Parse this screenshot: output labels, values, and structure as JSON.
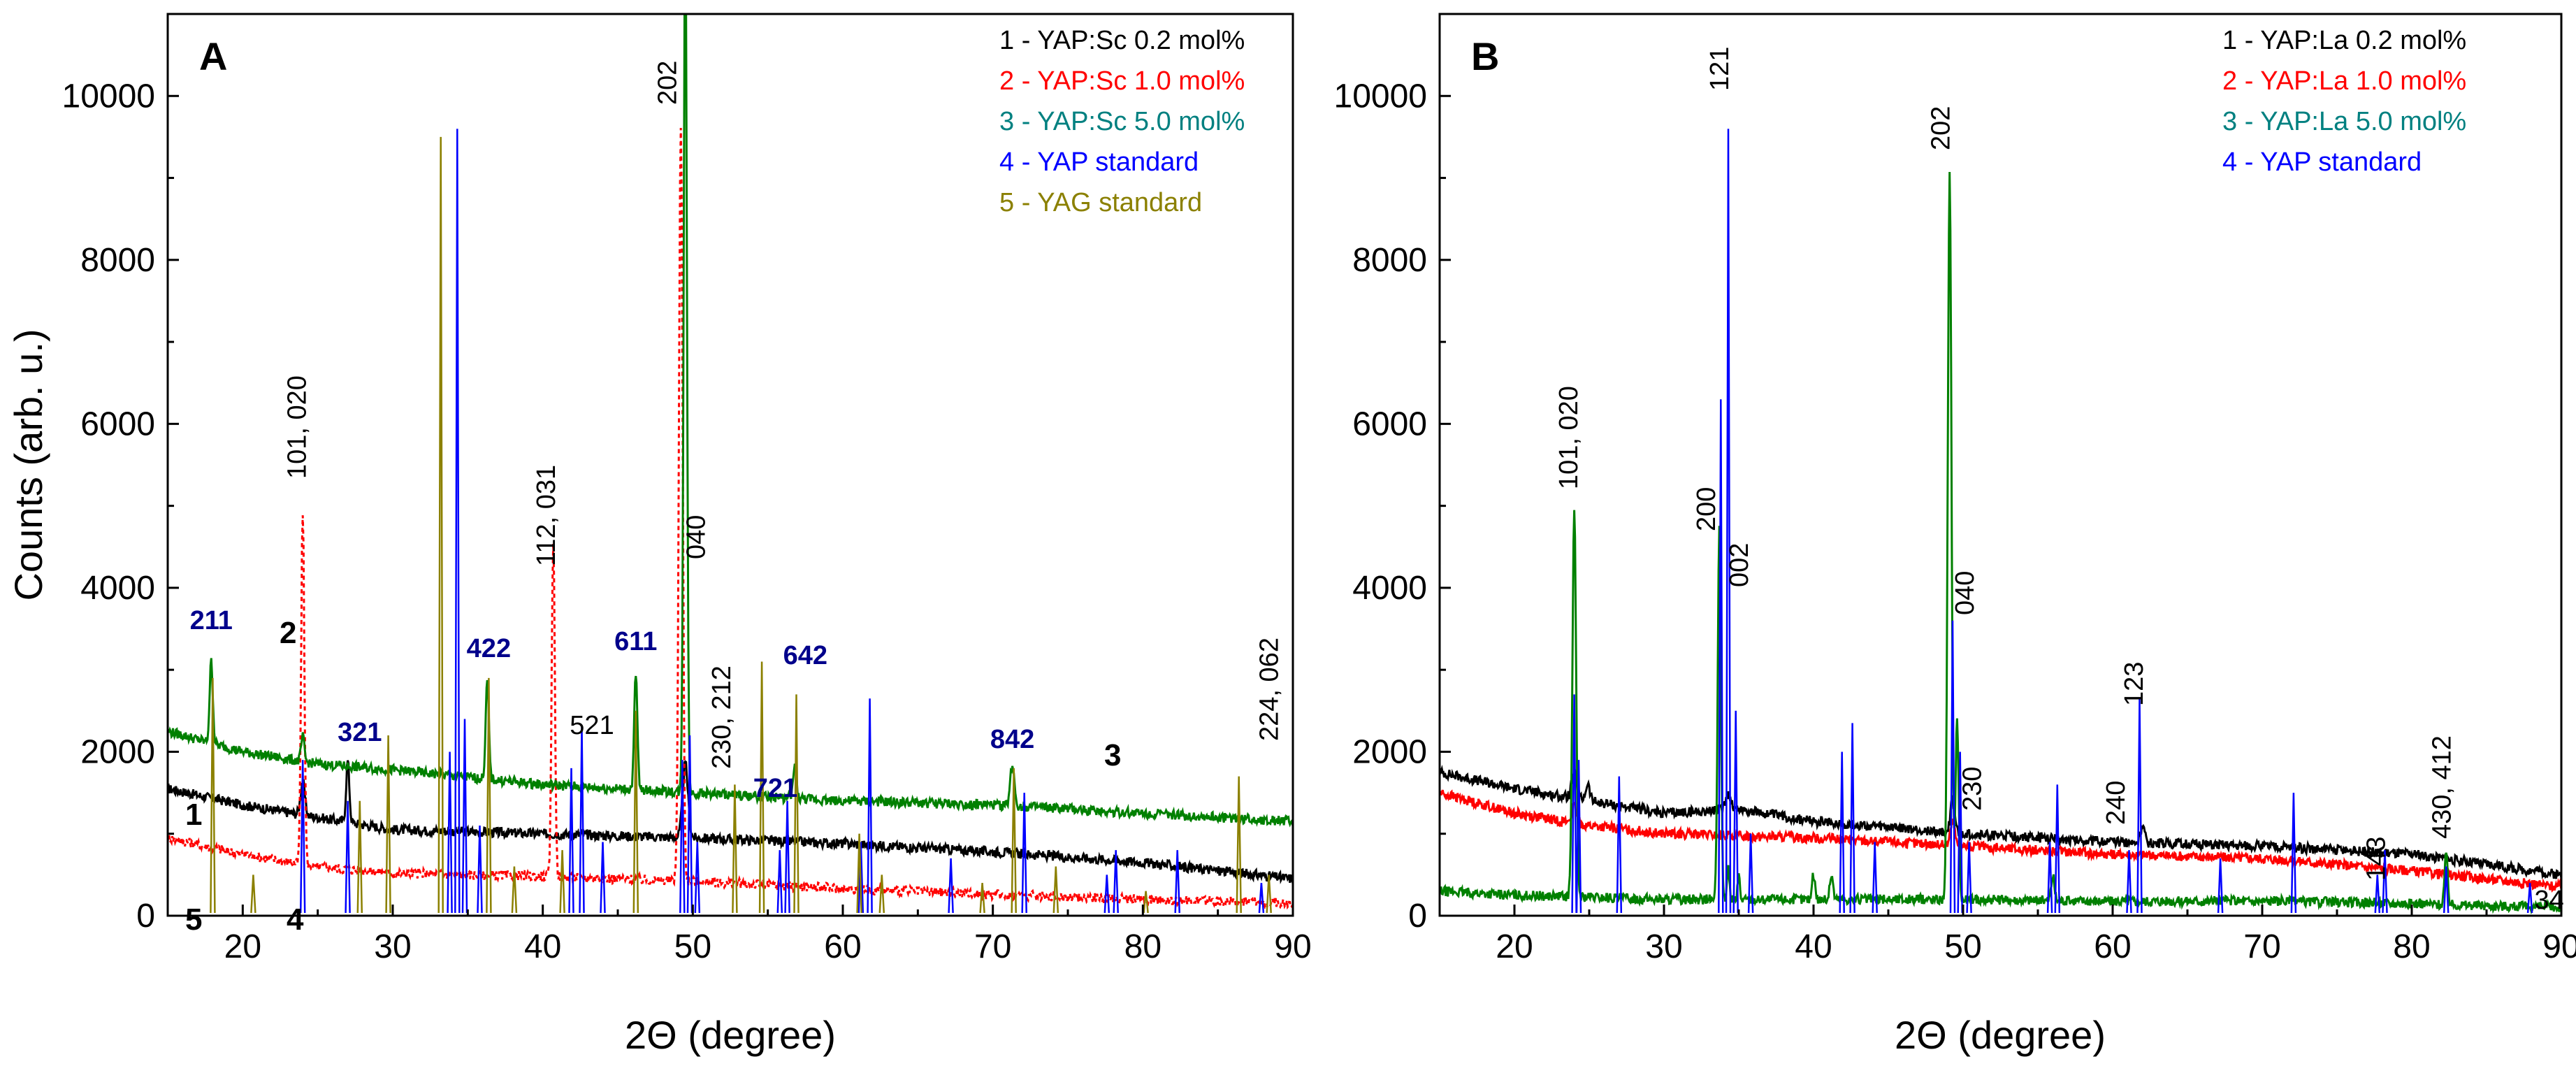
{
  "chart_data": [
    {
      "panel": "A",
      "type": "line",
      "xlabel": "2Θ (degree)",
      "ylabel": "Counts (arb. u.)",
      "xlim": [
        15,
        90
      ],
      "ylim": [
        0,
        11000
      ],
      "xticks": [
        20,
        30,
        40,
        50,
        60,
        70,
        80,
        90
      ],
      "yticks": [
        0,
        2000,
        4000,
        6000,
        8000,
        10000
      ],
      "legend_position": "top-right",
      "legend": [
        {
          "label": "1 - YAP:Sc 0.2 mol%",
          "color": "#000000"
        },
        {
          "label": "2 - YAP:Sc 1.0 mol%",
          "color": "#ff0000"
        },
        {
          "label": "3 - YAP:Sc 5.0 mol%",
          "color": "#008080"
        },
        {
          "label": "4 - YAP standard",
          "color": "#0000ff"
        },
        {
          "label": "5 - YAG standard",
          "color": "#8b8000"
        }
      ],
      "series": [
        {
          "name": "YAP:Sc 0.2 mol%",
          "color": "#000000",
          "style": "solid",
          "base": [
            [
              15,
              1550
            ],
            [
              20,
              1350
            ],
            [
              25,
              1200
            ],
            [
              30,
              1050
            ],
            [
              40,
              1000
            ],
            [
              50,
              950
            ],
            [
              60,
              880
            ],
            [
              70,
              780
            ],
            [
              80,
              650
            ],
            [
              90,
              450
            ]
          ],
          "peaks": [
            [
              24,
              400,
              0.4
            ],
            [
              27,
              750,
              0.3
            ],
            [
              49.5,
              900,
              0.5
            ]
          ]
        },
        {
          "name": "YAP:Sc 1.0 mol%",
          "color": "#ff0000",
          "style": "dashed",
          "base": [
            [
              15,
              950
            ],
            [
              20,
              750
            ],
            [
              25,
              600
            ],
            [
              30,
              520
            ],
            [
              40,
              480
            ],
            [
              50,
              420
            ],
            [
              60,
              330
            ],
            [
              70,
              260
            ],
            [
              80,
              200
            ],
            [
              90,
              150
            ]
          ],
          "peaks": [
            [
              24,
              4300,
              0.3
            ],
            [
              40.7,
              4100,
              0.3
            ],
            [
              49.2,
              9200,
              0.35
            ]
          ]
        },
        {
          "name": "YAP:Sc 5.0 mol%",
          "color": "#008000",
          "style": "solid",
          "base": [
            [
              15,
              2250
            ],
            [
              20,
              2000
            ],
            [
              25,
              1850
            ],
            [
              30,
              1780
            ],
            [
              40,
              1600
            ],
            [
              50,
              1500
            ],
            [
              60,
              1400
            ],
            [
              70,
              1350
            ],
            [
              80,
              1250
            ],
            [
              90,
              1150
            ]
          ],
          "peaks": [
            [
              17.9,
              1000,
              0.3
            ],
            [
              24,
              300,
              0.3
            ],
            [
              36.3,
              1200,
              0.3
            ],
            [
              46.2,
              1400,
              0.3
            ],
            [
              49.5,
              11000,
              0.3
            ],
            [
              56.8,
              400,
              0.3
            ],
            [
              71.3,
              500,
              0.4
            ]
          ]
        },
        {
          "name": "YAP standard",
          "color": "#0000ff",
          "style": "stick",
          "sticks": [
            [
              24,
              1900
            ],
            [
              27,
              1400
            ],
            [
              33.8,
              2000
            ],
            [
              34.3,
              9600
            ],
            [
              34.8,
              2400
            ],
            [
              35.8,
              1100
            ],
            [
              41.9,
              1800
            ],
            [
              42.6,
              2300
            ],
            [
              44,
              900
            ],
            [
              49.3,
              1900
            ],
            [
              49.8,
              2200
            ],
            [
              50.3,
              900
            ],
            [
              55.8,
              800
            ],
            [
              56.3,
              1400
            ],
            [
              61.2,
              900
            ],
            [
              61.8,
              2650
            ],
            [
              67.2,
              700
            ],
            [
              72.1,
              1500
            ],
            [
              77.6,
              500
            ],
            [
              78.2,
              800
            ],
            [
              82.3,
              800
            ],
            [
              87.9,
              400
            ]
          ]
        },
        {
          "name": "YAG standard",
          "color": "#8b8000",
          "style": "stick",
          "sticks": [
            [
              18,
              2900
            ],
            [
              20.7,
              500
            ],
            [
              27.8,
              1400
            ],
            [
              29.7,
              2200
            ],
            [
              33.2,
              9500
            ],
            [
              36.4,
              2900
            ],
            [
              38.1,
              600
            ],
            [
              41.3,
              800
            ],
            [
              46.2,
              2500
            ],
            [
              52.8,
              1600
            ],
            [
              54.6,
              3100
            ],
            [
              56.9,
              2700
            ],
            [
              61.1,
              1000
            ],
            [
              62.6,
              500
            ],
            [
              69.3,
              400
            ],
            [
              71.4,
              1800
            ],
            [
              74.2,
              600
            ],
            [
              80.2,
              300
            ],
            [
              86.4,
              1700
            ],
            [
              88.4,
              500
            ]
          ]
        }
      ],
      "annotations": [
        {
          "text": "A",
          "role": "panel"
        },
        {
          "text": "211",
          "x": 17.9,
          "color": "#00008b"
        },
        {
          "text": "321",
          "x": 27.8,
          "color": "#00008b"
        },
        {
          "text": "422",
          "x": 36.4,
          "color": "#00008b"
        },
        {
          "text": "611",
          "x": 46.2,
          "color": "#00008b"
        },
        {
          "text": "721",
          "x": 55.5,
          "color": "#00008b"
        },
        {
          "text": "642",
          "x": 57.5,
          "color": "#00008b"
        },
        {
          "text": "842",
          "x": 71.3,
          "color": "#00008b"
        },
        {
          "text": "101, 020",
          "x": 24.2,
          "color": "#000000"
        },
        {
          "text": "112, 031",
          "x": 40.8,
          "color": "#000000"
        },
        {
          "text": "202",
          "x": 48.9,
          "color": "#000000"
        },
        {
          "text": "040",
          "x": 50.8,
          "color": "#000000"
        },
        {
          "text": "521",
          "x": 41.8,
          "color": "#000000"
        },
        {
          "text": "230, 212",
          "x": 52.5,
          "color": "#000000"
        },
        {
          "text": "224, 062",
          "x": 89,
          "color": "#000000"
        }
      ],
      "curve_labels": [
        "1",
        "2",
        "3",
        "4",
        "5"
      ]
    },
    {
      "panel": "B",
      "type": "line",
      "xlabel": "2Θ (degree)",
      "ylabel": "",
      "xlim": [
        15,
        90
      ],
      "ylim": [
        0,
        11000
      ],
      "xticks": [
        20,
        30,
        40,
        50,
        60,
        70,
        80,
        90
      ],
      "yticks": [
        0,
        2000,
        4000,
        6000,
        8000,
        10000
      ],
      "legend_position": "top-right",
      "legend": [
        {
          "label": "1 - YAP:La 0.2 mol%",
          "color": "#000000"
        },
        {
          "label": "2 - YAP:La 1.0 mol%",
          "color": "#ff0000"
        },
        {
          "label": "3 - YAP:La 5.0 mol%",
          "color": "#008080"
        },
        {
          "label": "4 - YAP standard",
          "color": "#0000ff"
        }
      ],
      "series": [
        {
          "name": "YAP:La 0.2 mol%",
          "color": "#000000",
          "style": "solid",
          "base": [
            [
              15,
              1750
            ],
            [
              20,
              1550
            ],
            [
              25,
              1400
            ],
            [
              30,
              1250
            ],
            [
              35,
              1300
            ],
            [
              40,
              1150
            ],
            [
              50,
              1000
            ],
            [
              60,
              900
            ],
            [
              70,
              850
            ],
            [
              80,
              750
            ],
            [
              90,
              500
            ]
          ],
          "peaks": [
            [
              24,
              300,
              0.5
            ],
            [
              24.9,
              200,
              0.4
            ],
            [
              34.3,
              200,
              0.5
            ],
            [
              49.3,
              400,
              0.4
            ],
            [
              62,
              200,
              0.4
            ]
          ]
        },
        {
          "name": "YAP:La 1.0 mol%",
          "color": "#ff0000",
          "style": "solid",
          "base": [
            [
              15,
              1500
            ],
            [
              20,
              1250
            ],
            [
              25,
              1100
            ],
            [
              30,
              1000
            ],
            [
              40,
              950
            ],
            [
              50,
              850
            ],
            [
              60,
              750
            ],
            [
              70,
              700
            ],
            [
              80,
              550
            ],
            [
              90,
              350
            ]
          ],
          "peaks": [
            [
              24,
              200,
              0.5
            ],
            [
              49.3,
              300,
              0.4
            ]
          ]
        },
        {
          "name": "YAP:La 5.0 mol%",
          "color": "#008000",
          "style": "solid",
          "base": [
            [
              15,
              300
            ],
            [
              20,
              250
            ],
            [
              30,
              200
            ],
            [
              40,
              200
            ],
            [
              50,
              200
            ],
            [
              60,
              180
            ],
            [
              70,
              180
            ],
            [
              80,
              150
            ],
            [
              90,
              100
            ]
          ],
          "peaks": [
            [
              24,
              4700,
              0.35
            ],
            [
              33.7,
              4500,
              0.3
            ],
            [
              34.3,
              400,
              0.2
            ],
            [
              35,
              300,
              0.2
            ],
            [
              40,
              300,
              0.3
            ],
            [
              41.2,
              300,
              0.3
            ],
            [
              49.1,
              8850,
              0.35
            ],
            [
              49.6,
              2200,
              0.3
            ],
            [
              56,
              300,
              0.3
            ],
            [
              82.3,
              600,
              0.3
            ]
          ]
        },
        {
          "name": "YAP standard",
          "color": "#0000ff",
          "style": "stick",
          "sticks": [
            [
              24,
              2700
            ],
            [
              24.3,
              1900
            ],
            [
              27,
              1700
            ],
            [
              33.8,
              6300
            ],
            [
              34.3,
              9600
            ],
            [
              34.8,
              2500
            ],
            [
              35.8,
              1000
            ],
            [
              41.9,
              2000
            ],
            [
              42.6,
              2350
            ],
            [
              44.1,
              900
            ],
            [
              49.3,
              3600
            ],
            [
              49.8,
              2000
            ],
            [
              50.4,
              900
            ],
            [
              55.8,
              900
            ],
            [
              56.3,
              1600
            ],
            [
              61.1,
              800
            ],
            [
              61.8,
              2650
            ],
            [
              67.2,
              700
            ],
            [
              72.1,
              1500
            ],
            [
              77.7,
              500
            ],
            [
              78.2,
              800
            ],
            [
              82.3,
              600
            ],
            [
              87.9,
              400
            ]
          ]
        }
      ],
      "annotations": [
        {
          "text": "B",
          "role": "panel"
        },
        {
          "text": "121",
          "x": 34.3,
          "color": "#000000"
        },
        {
          "text": "101, 020",
          "x": 24.2,
          "color": "#000000"
        },
        {
          "text": "200",
          "x": 33.4,
          "color": "#000000"
        },
        {
          "text": "002",
          "x": 35.6,
          "color": "#000000"
        },
        {
          "text": "202",
          "x": 49.1,
          "color": "#000000"
        },
        {
          "text": "040",
          "x": 50.7,
          "color": "#000000"
        },
        {
          "text": "230",
          "x": 51.2,
          "color": "#000000"
        },
        {
          "text": "240",
          "x": 60.8,
          "color": "#000000"
        },
        {
          "text": "123",
          "x": 62,
          "color": "#000000"
        },
        {
          "text": "143",
          "x": 78.2,
          "color": "#000000"
        },
        {
          "text": "430, 412",
          "x": 82.6,
          "color": "#000000"
        },
        {
          "text": "34",
          "x": 88.2,
          "color": "#000000"
        }
      ]
    }
  ]
}
